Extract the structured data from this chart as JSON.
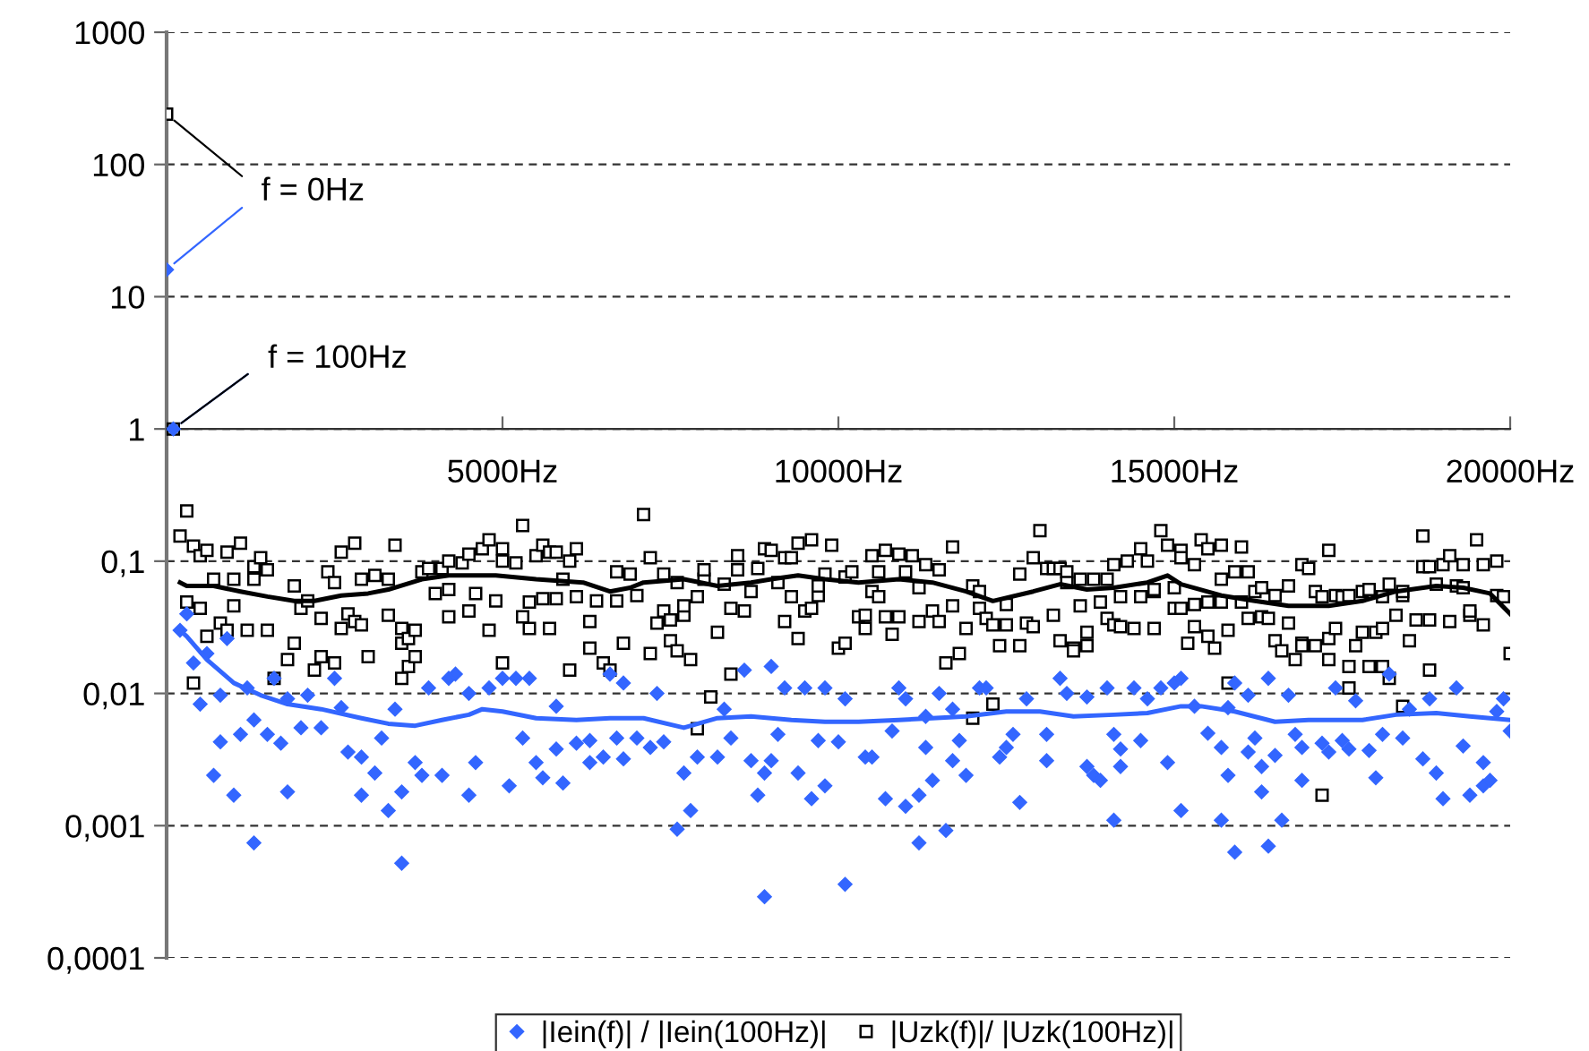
{
  "chart_data": {
    "type": "scatter",
    "xlim": [
      0,
      20000
    ],
    "xticks": [
      {
        "value": 5000,
        "label": "5000Hz"
      },
      {
        "value": 10000,
        "label": "10000Hz"
      },
      {
        "value": 15000,
        "label": "15000Hz"
      },
      {
        "value": 20000,
        "label": "20000Hz"
      }
    ],
    "ylim": [
      0.0001,
      1000
    ],
    "yticks": [
      {
        "value": 0.0001,
        "label": "0,0001"
      },
      {
        "value": 0.001,
        "label": "0,001"
      },
      {
        "value": 0.01,
        "label": "0,01"
      },
      {
        "value": 0.1,
        "label": "0,1"
      },
      1,
      10,
      100,
      1000
    ],
    "log": "y",
    "grid": "y",
    "legend": "bottom",
    "annotations": [
      {
        "text": "f = 0Hz",
        "x": 0,
        "y": 240
      },
      {
        "text": "f = 100Hz",
        "x": 100,
        "y": 1
      }
    ],
    "series": [
      {
        "name": "|Iein(f)| / |Iein(100Hz)|",
        "color": "#3366ff",
        "marker": "diamond",
        "x": [
          0,
          100,
          200,
          300,
          400,
          500,
          600,
          700,
          800,
          800,
          900,
          1000,
          1100,
          1200,
          1300,
          1300,
          1500,
          1600,
          1700,
          1800,
          1800,
          2000,
          2100,
          2300,
          2500,
          2600,
          2700,
          2900,
          2900,
          3100,
          3200,
          3300,
          3400,
          3500,
          3500,
          3700,
          3800,
          3900,
          4100,
          4200,
          4300,
          4500,
          4500,
          4600,
          4800,
          5000,
          5100,
          5200,
          5400,
          5300,
          5500,
          5600,
          5800,
          5800,
          5900,
          6100,
          6300,
          6300,
          6500,
          6600,
          6700,
          6800,
          6800,
          7000,
          7200,
          7300,
          7400,
          7600,
          7700,
          7800,
          7900,
          8200,
          8300,
          8400,
          8600,
          8700,
          8800,
          8900,
          8900,
          9000,
          9000,
          9100,
          9200,
          9400,
          9500,
          9600,
          9700,
          9800,
          9800,
          10000,
          10100,
          10100,
          10400,
          10500,
          10700,
          10800,
          10900,
          11000,
          11000,
          11200,
          11200,
          11300,
          11300,
          11400,
          11500,
          11600,
          11700,
          11700,
          11800,
          11900,
          12100,
          12200,
          12400,
          12500,
          12600,
          12700,
          12800,
          13100,
          13100,
          13300,
          13400,
          13700,
          13700,
          13800,
          13900,
          14000,
          14100,
          14100,
          14200,
          14200,
          14400,
          14500,
          14600,
          14800,
          14900,
          15000,
          15100,
          15100,
          15300,
          15500,
          15700,
          15700,
          15800,
          15800,
          15900,
          15900,
          16100,
          16100,
          16200,
          16300,
          16300,
          16400,
          16400,
          16500,
          16600,
          16700,
          16800,
          16900,
          16900,
          17200,
          17300,
          17400,
          17500,
          17600,
          17700,
          17900,
          18000,
          18100,
          18200,
          18400,
          18500,
          18700,
          18800,
          18900,
          19000,
          19200,
          19300,
          19400,
          19600,
          19600,
          19700,
          19800,
          19900,
          20000
        ],
        "values": [
          16,
          1,
          0.03,
          0.04,
          0.017,
          0.0083,
          0.02,
          0.0024,
          0.0043,
          0.0097,
          0.026,
          0.0017,
          0.0049,
          0.011,
          0.00074,
          0.0063,
          0.0049,
          0.013,
          0.0042,
          0.0018,
          0.0091,
          0.0055,
          0.0097,
          0.0055,
          0.013,
          0.0078,
          0.0036,
          0.0017,
          0.0033,
          0.0025,
          0.0046,
          0.0013,
          0.0076,
          0.00052,
          0.0018,
          0.003,
          0.0024,
          0.011,
          0.0024,
          0.013,
          0.014,
          0.01,
          0.0017,
          0.003,
          0.011,
          0.013,
          0.002,
          0.013,
          0.013,
          0.0046,
          0.003,
          0.0023,
          0.0038,
          0.008,
          0.0021,
          0.0042,
          0.003,
          0.0044,
          0.0033,
          0.014,
          0.0046,
          0.012,
          0.0032,
          0.0046,
          0.0039,
          0.01,
          0.0043,
          0.00094,
          0.0025,
          0.0013,
          0.0033,
          0.0033,
          0.0076,
          0.0046,
          0.015,
          0.0031,
          0.0017,
          0.00029,
          0.0025,
          0.016,
          0.0031,
          0.0049,
          0.011,
          0.0025,
          0.011,
          0.0016,
          0.0044,
          0.002,
          0.011,
          0.0043,
          0.00036,
          0.0091,
          0.0033,
          0.0033,
          0.0016,
          0.0052,
          0.011,
          0.0014,
          0.0091,
          0.0017,
          0.00074,
          0.0039,
          0.0067,
          0.0022,
          0.01,
          0.00092,
          0.0031,
          0.0076,
          0.0044,
          0.0024,
          0.011,
          0.011,
          0.0033,
          0.0039,
          0.0049,
          0.0015,
          0.0091,
          0.0031,
          0.0049,
          0.013,
          0.01,
          0.0028,
          0.0094,
          0.0024,
          0.0022,
          0.011,
          0.0011,
          0.0049,
          0.0028,
          0.0038,
          0.011,
          0.0044,
          0.0091,
          0.011,
          0.003,
          0.012,
          0.0013,
          0.013,
          0.008,
          0.005,
          0.0039,
          0.0011,
          0.0024,
          0.0078,
          0.00063,
          0.012,
          0.0097,
          0.0036,
          0.0046,
          0.0028,
          0.0018,
          0.013,
          0.0007,
          0.0034,
          0.0011,
          0.0097,
          0.0049,
          0.0039,
          0.0022,
          0.0042,
          0.0036,
          0.011,
          0.0044,
          0.0038,
          0.0088,
          0.0037,
          0.0023,
          0.0049,
          0.014,
          0.0046,
          0.0076,
          0.0032,
          0.0091,
          0.0025,
          0.0016,
          0.011,
          0.004,
          0.0017,
          0.003,
          0.002,
          0.0022,
          0.0073,
          0.0091,
          0.0052
        ]
      },
      {
        "name": "|Uzk(f)|/ |Uzk(100Hz)|",
        "color": "#000000",
        "marker": "square",
        "x": [
          0,
          100,
          200,
          300,
          300,
          400,
          500,
          500,
          600,
          400,
          600,
          700,
          800,
          900,
          900,
          1000,
          1000,
          1100,
          1200,
          1300,
          1300,
          1400,
          1500,
          1500,
          1600,
          1800,
          1900,
          1900,
          2000,
          2100,
          2200,
          2300,
          2300,
          2400,
          2500,
          2500,
          2600,
          2600,
          2700,
          2800,
          2800,
          2900,
          2900,
          3000,
          3100,
          3300,
          3300,
          3400,
          3500,
          3500,
          3500,
          3600,
          3600,
          3700,
          3700,
          3800,
          3900,
          4000,
          4100,
          4200,
          4200,
          4200,
          4400,
          4500,
          4500,
          4600,
          4700,
          4800,
          4800,
          4900,
          5000,
          5000,
          5000,
          5200,
          5300,
          5300,
          5400,
          5400,
          5500,
          5600,
          5600,
          5700,
          5700,
          5800,
          5800,
          5900,
          6000,
          6000,
          6100,
          6100,
          6300,
          6300,
          6400,
          6500,
          6600,
          6700,
          6700,
          6800,
          6900,
          7000,
          7100,
          7200,
          7200,
          7300,
          7400,
          7400,
          7500,
          7500,
          7600,
          7600,
          7700,
          7700,
          7800,
          7900,
          7900,
          8000,
          8000,
          8100,
          8200,
          8300,
          8400,
          8400,
          8500,
          8500,
          8600,
          8700,
          8800,
          8900,
          9000,
          9100,
          9200,
          9200,
          9300,
          9300,
          9400,
          9400,
          9500,
          9600,
          9600,
          9700,
          9700,
          9800,
          9900,
          10000,
          10100,
          10100,
          10200,
          10300,
          10400,
          10400,
          10500,
          10500,
          10600,
          10600,
          10700,
          10700,
          10800,
          10900,
          10900,
          11000,
          11100,
          11200,
          11200,
          11300,
          11400,
          11500,
          11500,
          11600,
          11700,
          11700,
          11800,
          11900,
          12000,
          12000,
          12100,
          12100,
          12200,
          12300,
          12300,
          12400,
          12500,
          12500,
          12700,
          12700,
          12800,
          12900,
          12900,
          13000,
          13100,
          13200,
          13200,
          13300,
          13300,
          13400,
          13400,
          13500,
          13500,
          13600,
          13600,
          13700,
          13700,
          13800,
          13900,
          14000,
          14000,
          14100,
          14100,
          14200,
          14200,
          14300,
          14400,
          14500,
          14500,
          14600,
          14700,
          14700,
          14700,
          14800,
          14900,
          15000,
          15000,
          15100,
          15100,
          15100,
          15200,
          15300,
          15300,
          15300,
          15400,
          15500,
          15500,
          15500,
          15600,
          15700,
          15700,
          15700,
          15800,
          15800,
          15900,
          16000,
          16000,
          16100,
          16100,
          16200,
          16300,
          16300,
          16400,
          16500,
          16500,
          16600,
          16700,
          16700,
          16800,
          16900,
          16900,
          16900,
          17000,
          17100,
          17100,
          17200,
          17200,
          17300,
          17300,
          17300,
          17400,
          17400,
          17500,
          17600,
          17600,
          17600,
          17700,
          17800,
          17800,
          17900,
          17900,
          18000,
          18100,
          18100,
          18100,
          18200,
          18200,
          18300,
          18400,
          18400,
          18400,
          18500,
          18600,
          18700,
          18700,
          18800,
          18800,
          18800,
          18900,
          19000,
          19100,
          19100,
          19200,
          19300,
          19300,
          19400,
          19400,
          19500,
          19600,
          19600,
          19800,
          19800,
          19900,
          20000
        ],
        "values": [
          240,
          1,
          0.155,
          0.24,
          0.049,
          0.13,
          0.11,
          0.044,
          0.027,
          0.012,
          0.121,
          0.073,
          0.034,
          0.117,
          0.03,
          0.073,
          0.046,
          0.137,
          0.03,
          0.091,
          0.073,
          0.106,
          0.03,
          0.086,
          0.013,
          0.018,
          0.024,
          0.065,
          0.044,
          0.05,
          0.015,
          0.019,
          0.037,
          0.083,
          0.017,
          0.069,
          0.117,
          0.031,
          0.04,
          0.035,
          0.137,
          0.073,
          0.033,
          0.019,
          0.078,
          0.039,
          0.073,
          0.132,
          0.013,
          0.031,
          0.024,
          0.016,
          0.026,
          0.03,
          0.019,
          0.083,
          0.088,
          0.057,
          0.088,
          0.1,
          0.061,
          0.038,
          0.097,
          0.113,
          0.042,
          0.057,
          0.124,
          0.145,
          0.03,
          0.05,
          0.124,
          0.1,
          0.017,
          0.097,
          0.186,
          0.038,
          0.049,
          0.031,
          0.11,
          0.132,
          0.052,
          0.117,
          0.031,
          0.052,
          0.117,
          0.073,
          0.015,
          0.1,
          0.054,
          0.124,
          0.022,
          0.035,
          0.05,
          0.017,
          0.015,
          0.05,
          0.083,
          0.024,
          0.08,
          0.055,
          0.225,
          0.02,
          0.106,
          0.034,
          0.042,
          0.08,
          0.025,
          0.036,
          0.069,
          0.021,
          0.039,
          0.046,
          0.018,
          0.054,
          0.0054,
          0.073,
          0.086,
          0.0094,
          0.029,
          0.067,
          0.044,
          0.014,
          0.11,
          0.086,
          0.042,
          0.059,
          0.088,
          0.124,
          0.121,
          0.069,
          0.106,
          0.035,
          0.106,
          0.054,
          0.026,
          0.137,
          0.042,
          0.044,
          0.145,
          0.055,
          0.065,
          0.08,
          0.132,
          0.022,
          0.024,
          0.076,
          0.083,
          0.038,
          0.031,
          0.039,
          0.059,
          0.11,
          0.083,
          0.054,
          0.038,
          0.121,
          0.028,
          0.038,
          0.113,
          0.083,
          0.11,
          0.063,
          0.035,
          0.094,
          0.042,
          0.035,
          0.086,
          0.017,
          0.128,
          0.046,
          0.02,
          0.031,
          0.065,
          0.0065,
          0.044,
          0.059,
          0.037,
          0.033,
          0.0083,
          0.023,
          0.033,
          0.047,
          0.023,
          0.08,
          0.034,
          0.032,
          0.106,
          0.17,
          0.088,
          0.088,
          0.039,
          0.025,
          0.088,
          0.083,
          0.069,
          0.022,
          0.021,
          0.073,
          0.046,
          0.023,
          0.029,
          0.073,
          0.049,
          0.037,
          0.073,
          0.094,
          0.033,
          0.032,
          0.054,
          0.1,
          0.031,
          0.054,
          0.124,
          0.1,
          0.059,
          0.061,
          0.031,
          0.17,
          0.132,
          0.063,
          0.044,
          0.044,
          0.121,
          0.106,
          0.024,
          0.032,
          0.047,
          0.094,
          0.145,
          0.124,
          0.049,
          0.027,
          0.022,
          0.073,
          0.132,
          0.049,
          0.03,
          0.012,
          0.083,
          0.049,
          0.128,
          0.037,
          0.083,
          0.059,
          0.063,
          0.038,
          0.037,
          0.025,
          0.055,
          0.021,
          0.034,
          0.065,
          0.018,
          0.024,
          0.023,
          0.094,
          0.088,
          0.023,
          0.059,
          0.054,
          0.0017,
          0.018,
          0.121,
          0.026,
          0.055,
          0.031,
          0.054,
          0.011,
          0.055,
          0.016,
          0.023,
          0.029,
          0.059,
          0.016,
          0.061,
          0.029,
          0.054,
          0.031,
          0.016,
          0.067,
          0.013,
          0.039,
          0.055,
          0.008,
          0.059,
          0.025,
          0.036,
          0.091,
          0.155,
          0.036,
          0.015,
          0.091,
          0.067,
          0.094,
          0.035,
          0.11,
          0.065,
          0.094,
          0.063,
          0.039,
          0.042,
          0.145,
          0.094,
          0.033,
          0.1,
          0.055,
          0.054,
          0.02
        ]
      },
      {
        "type": "line",
        "color": "#000000",
        "x": [
          200,
          300,
          700,
          1100,
          1500,
          1900,
          2200,
          2600,
          3000,
          3300,
          3800,
          4200,
          4900,
          5500,
          6200,
          6600,
          6900,
          7100,
          7700,
          8200,
          8700,
          9000,
          9400,
          9800,
          10300,
          10900,
          11400,
          11900,
          12300,
          12900,
          13300,
          13700,
          14100,
          14600,
          14900,
          15100,
          15700,
          16200,
          16700,
          17300,
          17800,
          18300,
          18900,
          19300,
          19700,
          20000
        ],
        "values": [
          0.069,
          0.065,
          0.065,
          0.059,
          0.054,
          0.05,
          0.05,
          0.055,
          0.057,
          0.061,
          0.073,
          0.078,
          0.078,
          0.073,
          0.069,
          0.059,
          0.063,
          0.069,
          0.073,
          0.065,
          0.069,
          0.073,
          0.078,
          0.073,
          0.069,
          0.073,
          0.069,
          0.059,
          0.05,
          0.059,
          0.067,
          0.061,
          0.063,
          0.069,
          0.078,
          0.067,
          0.055,
          0.05,
          0.046,
          0.046,
          0.05,
          0.059,
          0.065,
          0.063,
          0.057,
          0.04
        ]
      },
      {
        "type": "line",
        "color": "#3366ff",
        "x": [
          200,
          300,
          600,
          1000,
          1400,
          1800,
          2300,
          2900,
          3300,
          3700,
          4100,
          4500,
          4700,
          5000,
          5500,
          6100,
          6600,
          7100,
          7700,
          8200,
          8700,
          9300,
          9800,
          10300,
          10900,
          11400,
          11900,
          12500,
          13000,
          13500,
          14100,
          14600,
          15100,
          15400,
          15900,
          16500,
          17000,
          17800,
          18300,
          18900,
          19400,
          20000
        ],
        "values": [
          0.03,
          0.027,
          0.018,
          0.012,
          0.0097,
          0.0083,
          0.0076,
          0.0065,
          0.0059,
          0.0057,
          0.0063,
          0.0069,
          0.0076,
          0.0073,
          0.0065,
          0.0063,
          0.0065,
          0.0065,
          0.0055,
          0.0065,
          0.0067,
          0.0063,
          0.0061,
          0.0061,
          0.0063,
          0.0065,
          0.0067,
          0.0073,
          0.0073,
          0.0067,
          0.0069,
          0.0071,
          0.008,
          0.008,
          0.0073,
          0.0061,
          0.0063,
          0.0063,
          0.0069,
          0.0071,
          0.0067,
          0.0063
        ]
      }
    ]
  }
}
